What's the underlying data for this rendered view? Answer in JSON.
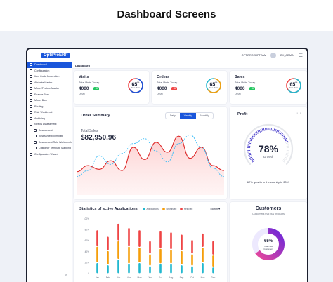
{
  "page_title": "Dashboard Screens",
  "colors": {
    "primary": "#1a56db",
    "teal": "#22b8cf",
    "orange": "#f59e0b",
    "red": "#ef4444",
    "purple": "#6d28d9",
    "pink": "#ec4899",
    "green": "#22c55e"
  },
  "app": {
    "logo": "OptiProERP"
  },
  "topbar": {
    "company": "OPTIPROERPTEAM",
    "user": "BH_ADMIN"
  },
  "breadcrumb": "Dashboard",
  "sidebar": {
    "items": [
      {
        "label": "Dashboard",
        "active": true,
        "sub": false
      },
      {
        "label": "Configuration",
        "active": false,
        "sub": false
      },
      {
        "label": "Item Code Generation",
        "active": false,
        "sub": false
      },
      {
        "label": "Attribute Master",
        "active": false,
        "sub": false
      },
      {
        "label": "Model/Feature Master",
        "active": false,
        "sub": false
      },
      {
        "label": "Feature Bom",
        "active": false,
        "sub": false
      },
      {
        "label": "Model Bom",
        "active": false,
        "sub": false
      },
      {
        "label": "Routing",
        "active": false,
        "sub": false
      },
      {
        "label": "Rule Workbench",
        "active": false,
        "sub": false
      },
      {
        "label": "Archiving",
        "active": false,
        "sub": false
      },
      {
        "label": "Need's Assessment",
        "active": false,
        "sub": false
      },
      {
        "label": "Assessment",
        "active": false,
        "sub": true
      },
      {
        "label": "Assessment Template",
        "active": false,
        "sub": true
      },
      {
        "label": "Assessment Rule Workbench",
        "active": false,
        "sub": true
      },
      {
        "label": "Customer Template Mapping",
        "active": false,
        "sub": true
      },
      {
        "label": "Configuration Wizard",
        "active": false,
        "sub": false
      }
    ]
  },
  "stats": [
    {
      "title": "Visits",
      "label": "Total Visits Today",
      "value": "4000",
      "badge": "+8",
      "badge_color": "#22c55e",
      "detail": "Detail",
      "percent": 65,
      "ring_label": "New Visits",
      "ring_color": "#1a56db",
      "ring_color2": "#ef4444"
    },
    {
      "title": "Orders",
      "label": "Total Visits Today",
      "value": "4000",
      "badge": "+8",
      "badge_color": "#ef4444",
      "detail": "Detail",
      "percent": 65,
      "ring_label": "New Visits",
      "ring_color": "#f59e0b",
      "ring_color2": "#22b8cf"
    },
    {
      "title": "Sales",
      "label": "Total Visits Today",
      "value": "4000",
      "badge": "+8",
      "badge_color": "#22c55e",
      "detail": "Detail",
      "percent": 65,
      "ring_label": "New Visits",
      "ring_color": "#22b8cf",
      "ring_color2": "#ef4444"
    }
  ],
  "order_summary": {
    "title": "Order Summary",
    "tabs": [
      {
        "label": "Daily",
        "active": false
      },
      {
        "label": "Weekly",
        "active": true
      },
      {
        "label": "Monthly",
        "active": false
      }
    ],
    "total_label": "Total Sales",
    "total_value": "$82,950.96"
  },
  "profit": {
    "title": "Profit",
    "percent": 78,
    "gauge_label": "Growth",
    "note": "62% growth in the country in 2019"
  },
  "applications": {
    "title": "Statistics of active Applications",
    "legend": [
      {
        "name": "Applications",
        "color": "#22b8cf"
      },
      {
        "name": "Shortlisted",
        "color": "#f59e0b"
      },
      {
        "name": "Rejected",
        "color": "#ef4444"
      }
    ],
    "period": "Month"
  },
  "customers": {
    "title": "Customers",
    "subtitle": "Customers that buy products",
    "percent": 65,
    "center_label": "Total New Customers"
  },
  "chart_data": [
    {
      "type": "line",
      "title": "Order Summary",
      "series": [
        {
          "values": [
            38,
            48,
            42,
            56,
            40,
            78,
            58,
            86,
            70,
            96,
            60,
            78,
            48,
            40
          ]
        },
        {
          "values": [
            30,
            40,
            64,
            50,
            68,
            84,
            92,
            72,
            54,
            84,
            98,
            78,
            44,
            30
          ]
        }
      ],
      "ylim": [
        0,
        110
      ]
    },
    {
      "type": "bar",
      "title": "Statistics of active Applications",
      "categories": [
        "Jan",
        "Feb",
        "Mar",
        "Apr",
        "May",
        "Jun",
        "Jul",
        "Aug",
        "Sep",
        "Oct",
        "Nov",
        "Dec"
      ],
      "yticks": [
        "0",
        "20%",
        "40%",
        "60%",
        "80%",
        "100%"
      ],
      "series": [
        {
          "name": "Applications",
          "values": [
            20,
            16,
            26,
            18,
            20,
            14,
            18,
            18,
            16,
            14,
            20,
            12
          ]
        },
        {
          "name": "Shortlisted",
          "values": [
            30,
            26,
            34,
            32,
            28,
            22,
            28,
            26,
            26,
            22,
            28,
            22
          ]
        },
        {
          "name": "Rejected",
          "values": [
            30,
            26,
            32,
            34,
            32,
            24,
            32,
            32,
            30,
            26,
            26,
            26
          ]
        }
      ],
      "ylim": [
        0,
        100
      ]
    }
  ]
}
